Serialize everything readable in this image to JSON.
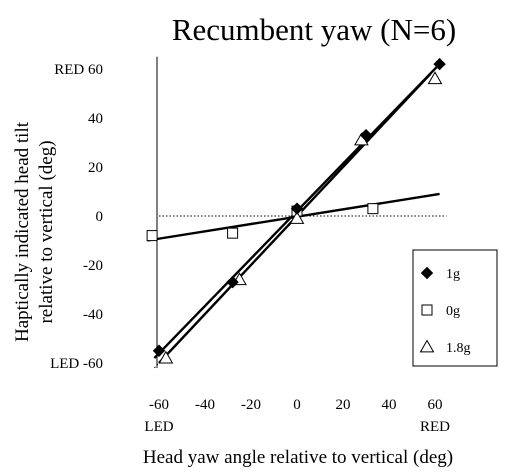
{
  "chart_data": {
    "type": "scatter",
    "title": "Recumbent yaw (N=6)",
    "xlabel": "Head yaw angle relative to vertical (deg)",
    "ylabel": [
      "Haptically indicated head tilt",
      "relative to vertical (deg)"
    ],
    "xlim": [
      -65,
      65
    ],
    "ylim": [
      -65,
      65
    ],
    "x_ticks": [
      {
        "value": -60,
        "label": "-60"
      },
      {
        "value": -40,
        "label": "-40"
      },
      {
        "value": -20,
        "label": "-20"
      },
      {
        "value": 0,
        "label": "0"
      },
      {
        "value": 20,
        "label": "20"
      },
      {
        "value": 40,
        "label": "40"
      },
      {
        "value": 60,
        "label": "60"
      }
    ],
    "y_ticks": [
      {
        "value": 60,
        "label": "RED 60"
      },
      {
        "value": 40,
        "label": "40"
      },
      {
        "value": 20,
        "label": "20"
      },
      {
        "value": 0,
        "label": "0"
      },
      {
        "value": -20,
        "label": "-20"
      },
      {
        "value": -40,
        "label": "-40"
      },
      {
        "value": -60,
        "label": "LED -60"
      }
    ],
    "x_end_labels": {
      "left": "LED",
      "right": "RED"
    },
    "legend_position": "lower-right",
    "series": [
      {
        "name": "1g",
        "marker": "diamond-filled",
        "x": [
          -60,
          -28,
          0,
          30,
          62
        ],
        "y": [
          -55,
          -27,
          3,
          33,
          62
        ],
        "fit": {
          "x": [
            -62,
            62
          ],
          "y": [
            -58,
            62
          ]
        }
      },
      {
        "name": "0g",
        "marker": "square-open",
        "x": [
          -63,
          -28,
          0,
          33
        ],
        "y": [
          -8,
          -7,
          2,
          3
        ],
        "fit": {
          "x": [
            -65,
            62
          ],
          "y": [
            -10,
            9
          ]
        }
      },
      {
        "name": "1.8g",
        "marker": "triangle-open",
        "x": [
          -57,
          -25,
          0,
          28,
          60
        ],
        "y": [
          -58,
          -26,
          -1,
          31,
          56
        ],
        "fit": {
          "x": [
            -60,
            58
          ],
          "y": [
            -60,
            58
          ]
        }
      }
    ],
    "reference_lines": [
      {
        "style": "dotted",
        "x": [
          -60,
          65
        ],
        "y": [
          0,
          0
        ]
      },
      {
        "style": "dotted",
        "x": [
          -62,
          62
        ],
        "y": [
          -62,
          62
        ]
      }
    ]
  }
}
